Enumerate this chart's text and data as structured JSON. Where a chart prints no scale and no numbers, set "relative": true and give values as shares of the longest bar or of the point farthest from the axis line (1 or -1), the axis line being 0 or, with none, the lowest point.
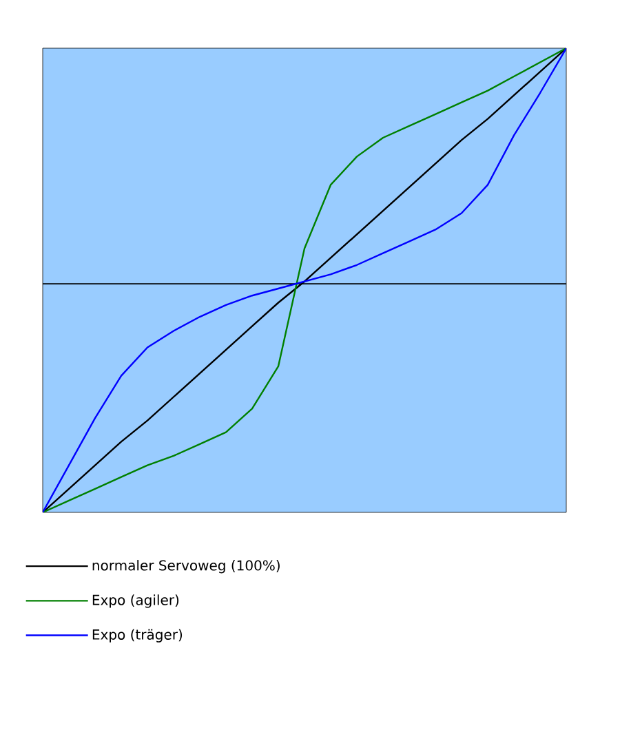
{
  "chart_data": {
    "type": "line",
    "relative": true,
    "legend": "bottom",
    "categories": [
      null,
      null,
      null,
      null,
      null,
      null,
      null,
      null,
      null,
      null,
      null,
      null,
      null,
      null,
      null,
      null,
      null,
      null,
      null,
      null,
      null
    ],
    "series": [
      {
        "name": "normaler Servoweg (100%)",
        "color": "#000000",
        "values": [
          -0.97,
          -0.87,
          -0.77,
          -0.67,
          -0.58,
          -0.48,
          -0.38,
          -0.28,
          -0.18,
          -0.08,
          0.01,
          0.11,
          0.21,
          0.31,
          0.41,
          0.51,
          0.61,
          0.7,
          0.8,
          0.9,
          1
        ]
      },
      {
        "name": "Expo (agiler)",
        "color": "#008000",
        "values": [
          -0.97,
          -0.92,
          -0.87,
          -0.82,
          -0.77,
          -0.73,
          -0.68,
          -0.63,
          -0.53,
          -0.35,
          0.15,
          0.42,
          0.54,
          0.62,
          0.67,
          0.72,
          0.77,
          0.82,
          0.88,
          0.94,
          1
        ]
      },
      {
        "name": "Expo (träger)",
        "color": "#0000ff",
        "values": [
          -0.97,
          -0.77,
          -0.57,
          -0.39,
          -0.27,
          -0.2,
          -0.14,
          -0.09,
          -0.05,
          -0.02,
          0.01,
          0.04,
          0.08,
          0.13,
          0.18,
          0.23,
          0.3,
          0.42,
          0.63,
          0.81,
          1
        ]
      }
    ]
  }
}
